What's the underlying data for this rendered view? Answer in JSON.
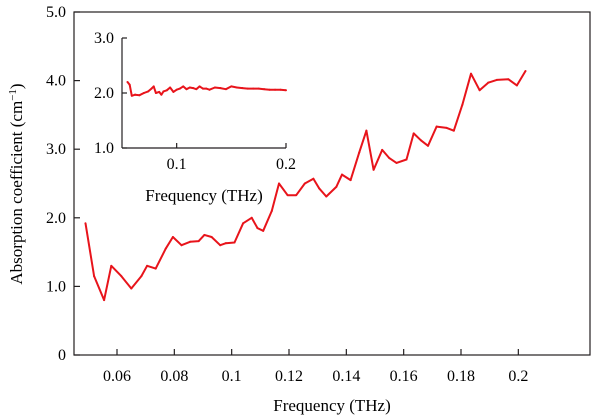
{
  "chart_data": [
    {
      "type": "line",
      "xlabel": "Frequency (THz)",
      "ylabel": "Absorption coefficient (cm",
      "ylabel_sup": "−1",
      "ylabel_close": ")",
      "xlim": [
        0.045,
        0.225
      ],
      "ylim": [
        0,
        5.0
      ],
      "xticks": [
        {
          "v": 0.06,
          "label": "0.06"
        },
        {
          "v": 0.08,
          "label": "0.08"
        },
        {
          "v": 0.1,
          "label": "0.1"
        },
        {
          "v": 0.12,
          "label": "0.12"
        },
        {
          "v": 0.14,
          "label": "0.14"
        },
        {
          "v": 0.16,
          "label": "0.16"
        },
        {
          "v": 0.18,
          "label": "0.18"
        },
        {
          "v": 0.2,
          "label": "0.2"
        }
      ],
      "yticks": [
        {
          "v": 0,
          "label": "0"
        },
        {
          "v": 1.0,
          "label": "1.0"
        },
        {
          "v": 2.0,
          "label": "2.0"
        },
        {
          "v": 3.0,
          "label": "3.0"
        },
        {
          "v": 4.0,
          "label": "4.0"
        },
        {
          "v": 5.0,
          "label": "5.0"
        }
      ],
      "grid": false,
      "series": [
        {
          "color": "#e8141b",
          "x": [
            0.049,
            0.052,
            0.0555,
            0.058,
            0.0615,
            0.065,
            0.0685,
            0.0705,
            0.0735,
            0.077,
            0.0795,
            0.0825,
            0.0855,
            0.0885,
            0.0905,
            0.093,
            0.096,
            0.098,
            0.101,
            0.104,
            0.107,
            0.109,
            0.111,
            0.114,
            0.1165,
            0.1195,
            0.1225,
            0.1255,
            0.1285,
            0.1305,
            0.133,
            0.1365,
            0.1385,
            0.1415,
            0.1445,
            0.147,
            0.1495,
            0.1525,
            0.155,
            0.1575,
            0.161,
            0.1635,
            0.166,
            0.1685,
            0.1715,
            0.175,
            0.1775,
            0.1805,
            0.1835,
            0.1865,
            0.1895,
            0.1925,
            0.1965,
            0.1995,
            0.2025
          ],
          "y": [
            1.92,
            1.15,
            0.8,
            1.3,
            1.15,
            0.97,
            1.15,
            1.3,
            1.26,
            1.55,
            1.72,
            1.6,
            1.65,
            1.66,
            1.75,
            1.72,
            1.6,
            1.63,
            1.64,
            1.92,
            2.0,
            1.85,
            1.81,
            2.1,
            2.5,
            2.33,
            2.33,
            2.5,
            2.57,
            2.43,
            2.31,
            2.45,
            2.63,
            2.55,
            2.95,
            3.27,
            2.7,
            2.99,
            2.87,
            2.8,
            2.85,
            3.23,
            3.13,
            3.05,
            3.33,
            3.31,
            3.27,
            3.65,
            4.1,
            3.86,
            3.97,
            4.01,
            4.02,
            3.93,
            4.14
          ]
        }
      ]
    },
    {
      "type": "line",
      "xlabel": "Frequency (THz)",
      "ylabel": "",
      "xlim": [
        0.05,
        0.2
      ],
      "ylim": [
        1.0,
        3.0
      ],
      "xticks": [
        {
          "v": 0.1,
          "label": "0.1"
        },
        {
          "v": 0.2,
          "label": "0.2"
        }
      ],
      "yticks": [
        {
          "v": 1.0,
          "label": "1.0"
        },
        {
          "v": 2.0,
          "label": "2.0"
        },
        {
          "v": 3.0,
          "label": "3.0"
        }
      ],
      "grid": false,
      "series": [
        {
          "color": "#e8141b",
          "x": [
            0.055,
            0.057,
            0.059,
            0.062,
            0.066,
            0.07,
            0.074,
            0.077,
            0.079,
            0.081,
            0.084,
            0.086,
            0.088,
            0.091,
            0.094,
            0.097,
            0.1,
            0.103,
            0.106,
            0.109,
            0.112,
            0.115,
            0.118,
            0.121,
            0.124,
            0.127,
            0.13,
            0.135,
            0.14,
            0.145,
            0.15,
            0.155,
            0.16,
            0.165,
            0.17,
            0.175,
            0.18,
            0.185,
            0.19,
            0.195,
            0.2
          ],
          "y": [
            2.2,
            2.15,
            1.95,
            1.97,
            1.96,
            2.0,
            2.03,
            2.08,
            2.12,
            2.0,
            2.02,
            1.97,
            2.03,
            2.05,
            2.1,
            2.02,
            2.06,
            2.08,
            2.12,
            2.07,
            2.1,
            2.09,
            2.07,
            2.12,
            2.08,
            2.08,
            2.06,
            2.1,
            2.09,
            2.07,
            2.12,
            2.1,
            2.09,
            2.08,
            2.08,
            2.08,
            2.07,
            2.06,
            2.06,
            2.06,
            2.05
          ]
        }
      ]
    }
  ]
}
